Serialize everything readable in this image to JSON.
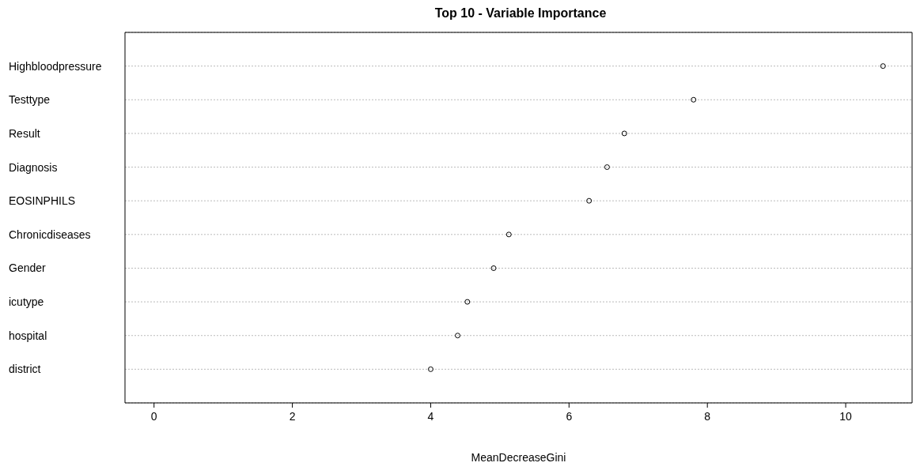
{
  "chart_data": {
    "type": "scatter",
    "title": "Top 10 - Variable Importance",
    "xlabel": "MeanDecreaseGini",
    "categories": [
      "Highbloodpressure",
      "Testtype",
      "Result",
      "Diagnosis",
      "EOSINPHILS",
      "Chronicdiseases",
      "Gender",
      "icutype",
      "hospital",
      "district"
    ],
    "orientation": "horizontal",
    "values": [
      10.54,
      7.8,
      6.8,
      6.55,
      6.29,
      5.13,
      4.91,
      4.53,
      4.39,
      4.0
    ],
    "color": "#000000",
    "marker": "circle",
    "grid": "y",
    "xlim": [
      -0.42,
      10.96
    ],
    "xticks": [
      0,
      2,
      4,
      6,
      8,
      10
    ]
  }
}
